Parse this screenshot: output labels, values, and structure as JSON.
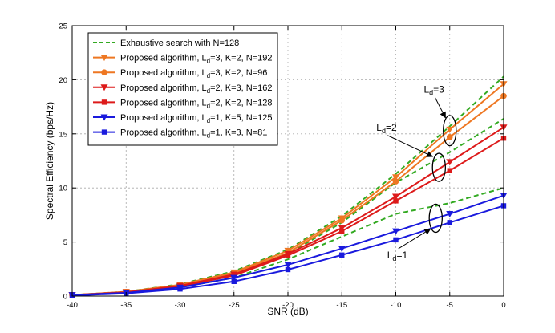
{
  "chart_data": {
    "type": "line",
    "title": "",
    "xlabel": "SNR (dB)",
    "ylabel": "Spectral Efficiency (bps/Hz)",
    "xlim": [
      -40,
      0
    ],
    "ylim": [
      0,
      25
    ],
    "xticks": [
      -40,
      -35,
      -30,
      -25,
      -20,
      -15,
      -10,
      -5,
      0
    ],
    "yticks": [
      0,
      5,
      10,
      15,
      20,
      25
    ],
    "grid": true,
    "legend_position": "top-left",
    "x": [
      -40,
      -35,
      -30,
      -25,
      -20,
      -15,
      -10,
      -5,
      0
    ],
    "series": [
      {
        "name": "Exhaustive search with N=128",
        "color": "#33aa22",
        "style": "dashed",
        "marker": "none",
        "group": "Ld1",
        "values": [
          0.1,
          0.3,
          0.8,
          1.7,
          3.4,
          5.5,
          7.6,
          8.6,
          10.0
        ]
      },
      {
        "name": "Exhaustive search with N=128",
        "color": "#33aa22",
        "style": "dashed",
        "marker": "none",
        "group": "Ld2",
        "values": [
          0.1,
          0.35,
          1.0,
          2.1,
          3.9,
          6.8,
          10.5,
          13.3,
          16.4
        ]
      },
      {
        "name": "Exhaustive search with N=128",
        "color": "#33aa22",
        "style": "dashed",
        "marker": "none",
        "group": "Ld3",
        "values": [
          0.1,
          0.4,
          1.1,
          2.3,
          4.3,
          7.4,
          11.3,
          15.7,
          20.3
        ]
      },
      {
        "name": "Proposed algorithm, L_d=3, K=2, N=192",
        "color": "#ee7722",
        "style": "solid",
        "marker": "triangle-down",
        "values": [
          0.1,
          0.4,
          1.05,
          2.2,
          4.2,
          7.2,
          11.0,
          15.4,
          19.6
        ]
      },
      {
        "name": "Proposed algorithm, L_d=3, K=2, N=96",
        "color": "#ee7722",
        "style": "solid",
        "marker": "circle",
        "values": [
          0.1,
          0.38,
          1.0,
          2.1,
          4.0,
          7.0,
          10.6,
          14.7,
          18.5
        ]
      },
      {
        "name": "Proposed algorithm, L_d=2, K=3, N=162",
        "color": "#dd1a1a",
        "style": "solid",
        "marker": "triangle-down",
        "values": [
          0.1,
          0.35,
          0.95,
          2.0,
          3.9,
          6.3,
          9.2,
          12.4,
          15.6
        ]
      },
      {
        "name": "Proposed algorithm, L_d=2, K=2, N=128",
        "color": "#dd1a1a",
        "style": "solid",
        "marker": "square",
        "values": [
          0.1,
          0.33,
          0.9,
          1.9,
          3.75,
          6.0,
          8.8,
          11.6,
          14.6
        ]
      },
      {
        "name": "Proposed algorithm, L_d=1, K=5, N=125",
        "color": "#1a1add",
        "style": "solid",
        "marker": "triangle-down",
        "values": [
          0.1,
          0.3,
          0.8,
          1.7,
          2.9,
          4.4,
          6.0,
          7.6,
          9.3
        ]
      },
      {
        "name": "Proposed algorithm, L_d=1, K=3, N=81",
        "color": "#1a1add",
        "style": "solid",
        "marker": "square",
        "values": [
          0.05,
          0.25,
          0.65,
          1.35,
          2.45,
          3.8,
          5.2,
          6.8,
          8.35
        ]
      }
    ],
    "legend": [
      {
        "label": "Exhaustive search with N=128",
        "color": "#33aa22",
        "style": "dashed",
        "marker": "none"
      },
      {
        "pre": "Proposed algorithm, L",
        "sub": "d",
        "post": "=3, K=2, N=192",
        "color": "#ee7722",
        "style": "solid",
        "marker": "triangle-down"
      },
      {
        "pre": "Proposed algorithm, L",
        "sub": "d",
        "post": "=3, K=2, N=96",
        "color": "#ee7722",
        "style": "solid",
        "marker": "circle"
      },
      {
        "pre": "Proposed algorithm, L",
        "sub": "d",
        "post": "=2, K=3, N=162",
        "color": "#dd1a1a",
        "style": "solid",
        "marker": "triangle-down"
      },
      {
        "pre": "Proposed algorithm, L",
        "sub": "d",
        "post": "=2, K=2, N=128",
        "color": "#dd1a1a",
        "style": "solid",
        "marker": "square"
      },
      {
        "pre": "Proposed algorithm, L",
        "sub": "d",
        "post": "=1, K=5, N=125",
        "color": "#1a1add",
        "style": "solid",
        "marker": "triangle-down"
      },
      {
        "pre": "Proposed algorithm, L",
        "sub": "d",
        "post": "=1, K=3, N=81",
        "color": "#1a1add",
        "style": "solid",
        "marker": "square"
      }
    ],
    "annotations": [
      {
        "pre": "L",
        "sub": "d",
        "post": "=3",
        "ellipse_center": [
          -5,
          15.3
        ],
        "ellipse_size": [
          1.2,
          2.8
        ],
        "label_at": [
          -7.4,
          18.8
        ],
        "arrow_to": [
          -5.4,
          16.5
        ]
      },
      {
        "pre": "L",
        "sub": "d",
        "post": "=2",
        "ellipse_center": [
          -6.0,
          11.9
        ],
        "ellipse_size": [
          1.2,
          2.6
        ],
        "label_at": [
          -11.8,
          15.3
        ],
        "arrow_to": [
          -6.6,
          12.9
        ]
      },
      {
        "pre": "L",
        "sub": "d",
        "post": "=1",
        "ellipse_center": [
          -6.3,
          7.2
        ],
        "ellipse_size": [
          1.2,
          2.6
        ],
        "label_at": [
          -10.8,
          3.5
        ],
        "arrow_to": [
          -6.8,
          6.2
        ]
      }
    ]
  }
}
